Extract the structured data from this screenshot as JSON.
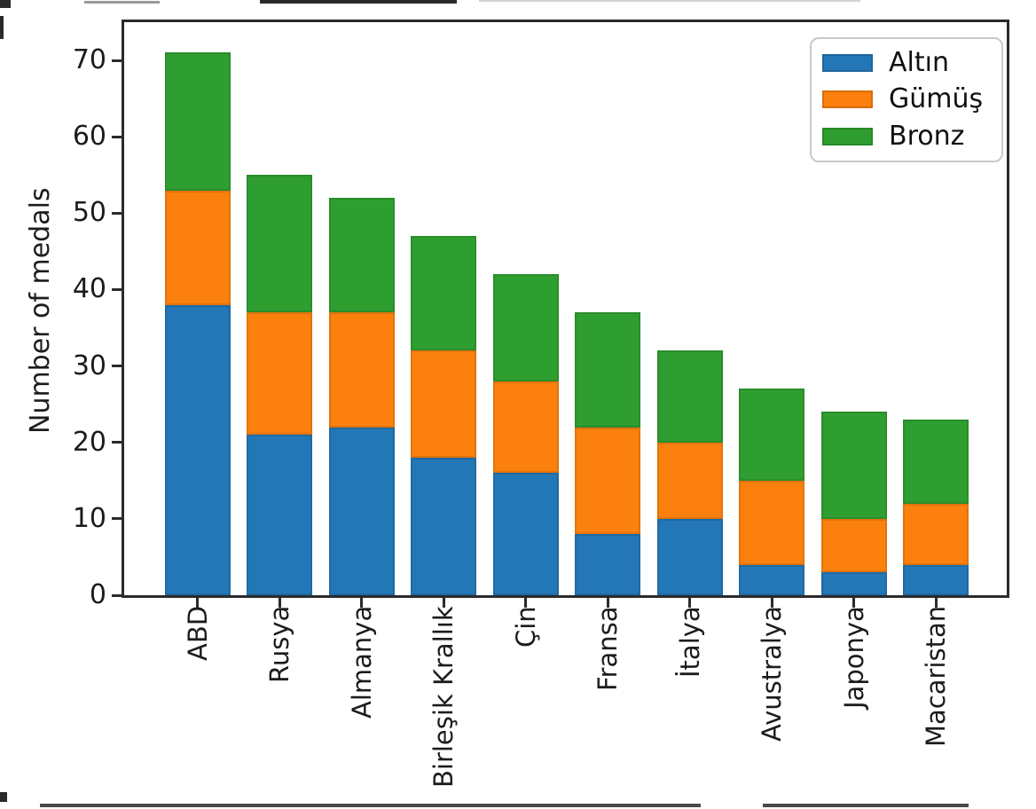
{
  "figure": {
    "ylabel": "Number of medals"
  },
  "legend": {
    "position": "upper right",
    "items": [
      "Altın",
      "Gümüş",
      "Bronz"
    ]
  },
  "colors": {
    "gold_series": "#2377b6",
    "silver_series": "#fb800e",
    "bronze_series": "#2f9e30",
    "axis": "#2b2b2b",
    "text": "#1c1c1c"
  },
  "chart_data": {
    "type": "bar",
    "stacked": true,
    "title": "",
    "xlabel": "",
    "ylabel": "Number of medals",
    "categories": [
      "ABD",
      "Rusya",
      "Almanya",
      "Birleşik Krallık",
      "Çin",
      "Fransa",
      "İtalya",
      "Avustralya",
      "Japonya",
      "Macaristan"
    ],
    "series": [
      {
        "name": "Altın",
        "color": "#2377b6",
        "values": [
          38,
          21,
          22,
          18,
          16,
          8,
          10,
          4,
          3,
          4
        ]
      },
      {
        "name": "Gümüş",
        "color": "#fb800e",
        "values": [
          15,
          16,
          15,
          14,
          12,
          14,
          10,
          11,
          7,
          8
        ]
      },
      {
        "name": "Bronz",
        "color": "#2f9e30",
        "values": [
          18,
          18,
          15,
          15,
          14,
          15,
          12,
          12,
          14,
          11
        ]
      }
    ],
    "totals": [
      71,
      55,
      52,
      47,
      42,
      37,
      32,
      27,
      24,
      23
    ],
    "yticks": [
      0,
      10,
      20,
      30,
      40,
      50,
      60,
      70
    ],
    "ylim": [
      0,
      75
    ],
    "grid": false,
    "legend_position": "upper right",
    "xticklabel_rotation": 90
  }
}
